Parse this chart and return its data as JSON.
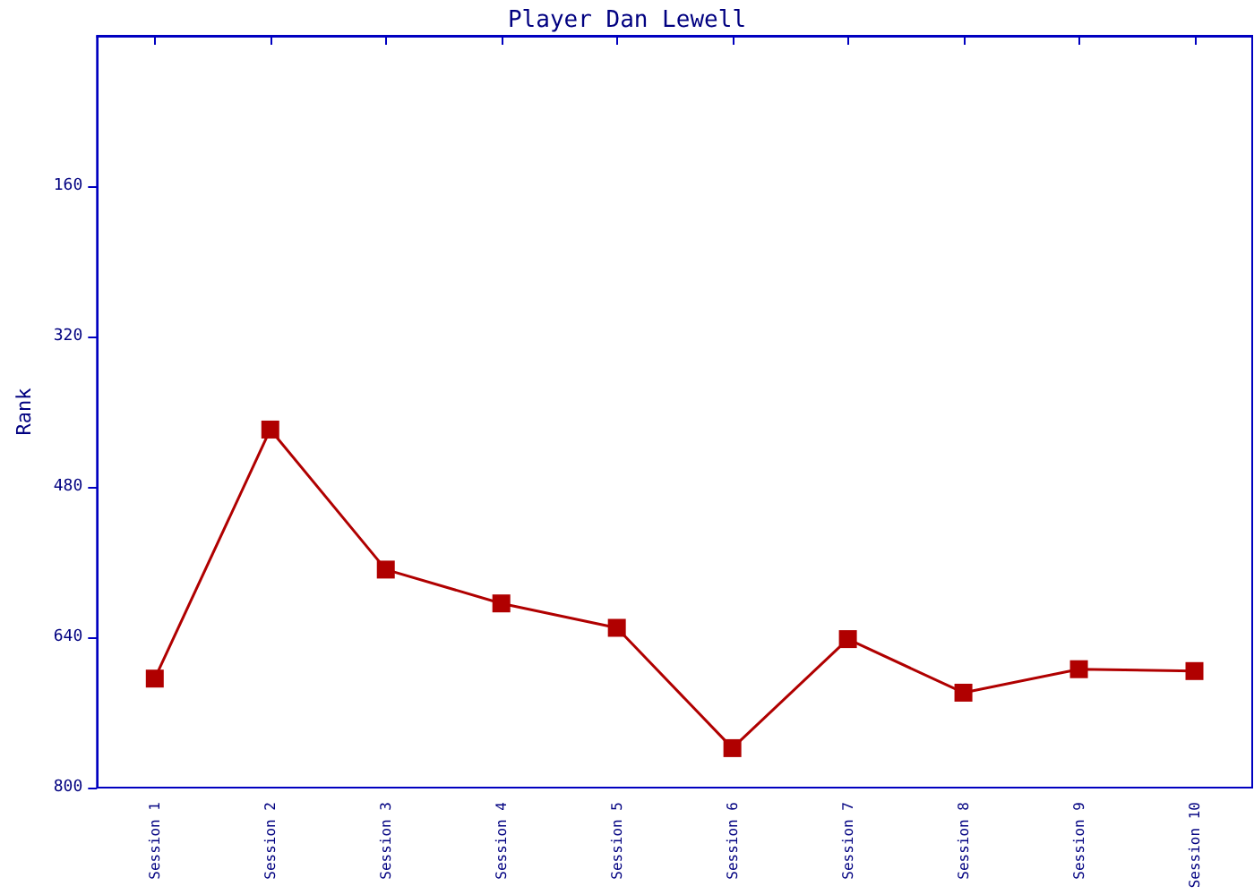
{
  "chart_data": {
    "type": "line",
    "title": "Player Dan Lewell",
    "ylabel": "Rank",
    "categories": [
      "Session 1",
      "Session 2",
      "Session 3",
      "Session 4",
      "Session 5",
      "Session 6",
      "Session 7",
      "Session 8",
      "Session 9",
      "Session 10"
    ],
    "series": [
      {
        "color": "#b00000",
        "values": [
          684,
          419,
          568,
          604,
          630,
          758,
          642,
          699,
          674,
          676
        ]
      }
    ],
    "ylim": [
      800,
      0
    ],
    "yticks": [
      160,
      320,
      480,
      640,
      800
    ],
    "grid": false,
    "marker": "square",
    "line_style": "solid"
  }
}
